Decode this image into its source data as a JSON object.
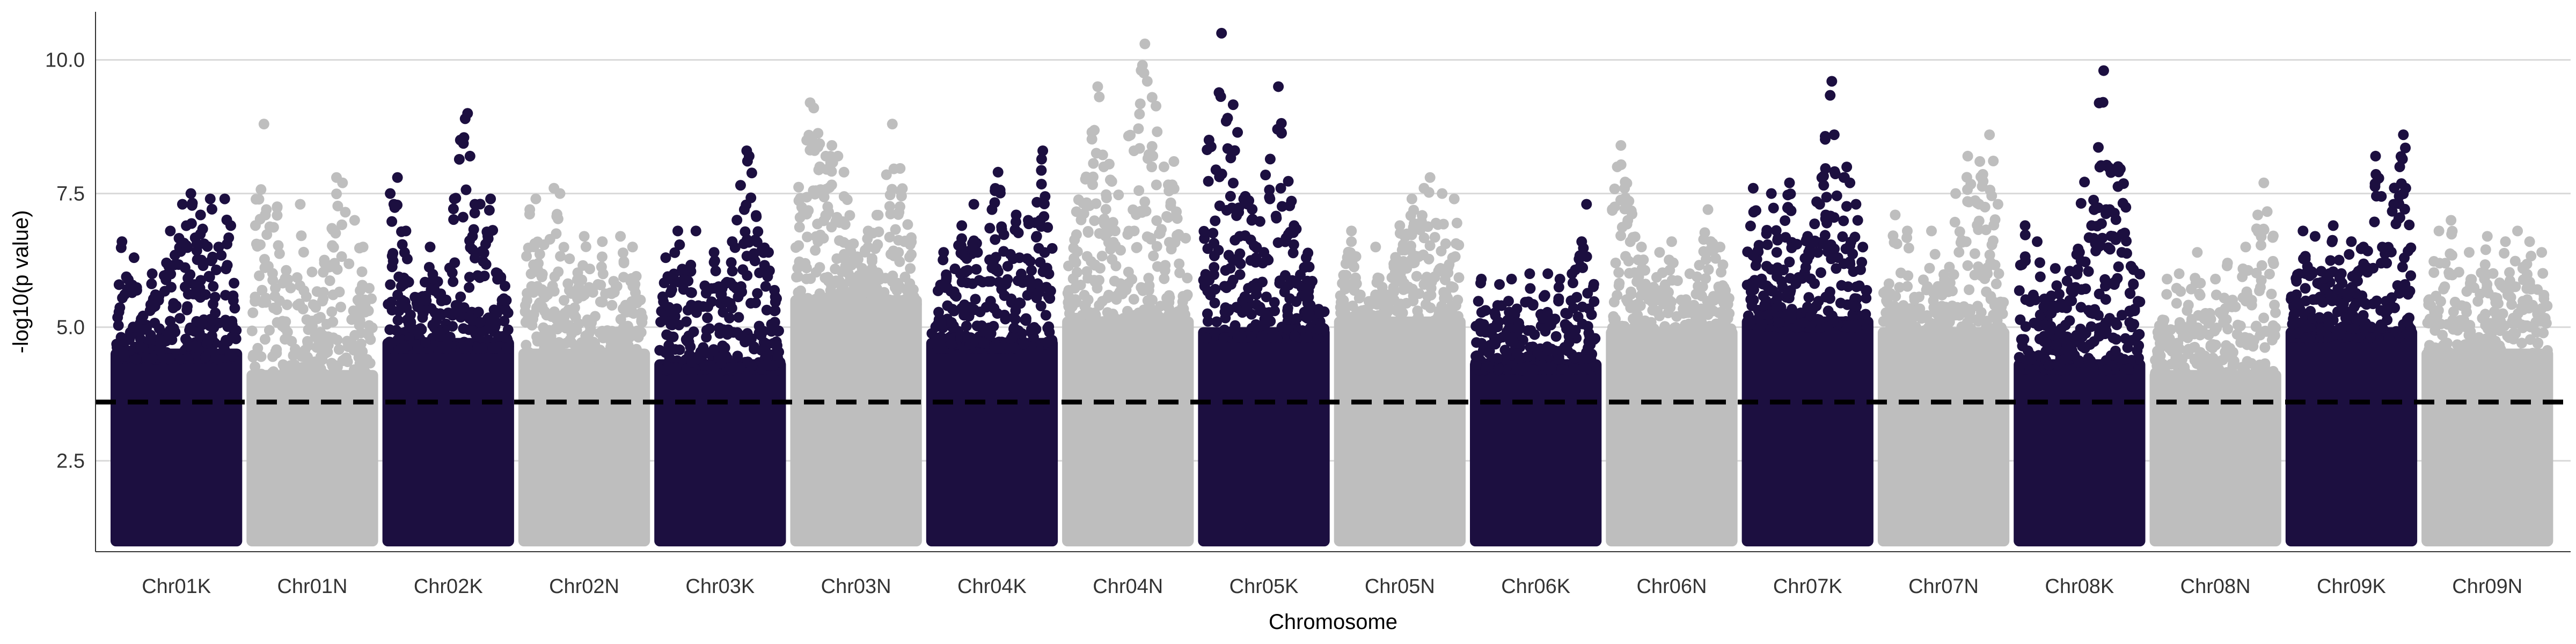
{
  "chart_data": {
    "type": "scatter",
    "title": "",
    "xlabel": "Chromosome",
    "ylabel": "-log10(p value)",
    "ylim": [
      0.8,
      10.9
    ],
    "yticks": [
      2.5,
      5.0,
      7.5,
      10.0
    ],
    "ytick_labels": [
      "2.5",
      "5.0",
      "7.5",
      "10.0"
    ],
    "grid": "horizontal major gridlines at y ticks",
    "legend": "none",
    "threshold_line": {
      "y": 3.6,
      "style": "dashed",
      "color": "#000000"
    },
    "point_colors": [
      "#1c0f40",
      "#bebebe"
    ],
    "points_floor": 1.0,
    "chromosomes": [
      {
        "name": "Chr01K",
        "color": "#1c0f40",
        "dense_top": 4.6,
        "peaks": [
          [
            0.05,
            6.6
          ],
          [
            0.15,
            6.3
          ],
          [
            0.3,
            6.0
          ],
          [
            0.45,
            6.8
          ],
          [
            0.55,
            7.3
          ],
          [
            0.62,
            7.5
          ],
          [
            0.7,
            7.1
          ],
          [
            0.78,
            7.4
          ],
          [
            0.85,
            6.5
          ],
          [
            0.9,
            7.4
          ],
          [
            0.95,
            6.9
          ]
        ]
      },
      {
        "name": "Chr01N",
        "color": "#bebebe",
        "dense_top": 4.2,
        "peaks": [
          [
            0.1,
            8.8
          ],
          [
            0.12,
            7.2
          ],
          [
            0.4,
            7.3
          ],
          [
            0.6,
            6.2
          ],
          [
            0.7,
            7.8
          ],
          [
            0.75,
            7.7
          ],
          [
            0.85,
            7.0
          ],
          [
            0.92,
            6.5
          ]
        ]
      },
      {
        "name": "Chr02K",
        "color": "#1c0f40",
        "dense_top": 4.8,
        "peaks": [
          [
            0.02,
            7.5
          ],
          [
            0.05,
            7.3
          ],
          [
            0.08,
            7.8
          ],
          [
            0.15,
            6.8
          ],
          [
            0.35,
            6.5
          ],
          [
            0.55,
            7.4
          ],
          [
            0.6,
            8.5
          ],
          [
            0.64,
            8.9
          ],
          [
            0.66,
            9.0
          ],
          [
            0.68,
            8.2
          ],
          [
            0.72,
            7.3
          ],
          [
            0.85,
            7.4
          ]
        ]
      },
      {
        "name": "Chr02N",
        "color": "#bebebe",
        "dense_top": 4.6,
        "peaks": [
          [
            0.05,
            7.2
          ],
          [
            0.1,
            7.4
          ],
          [
            0.25,
            7.6
          ],
          [
            0.3,
            7.5
          ],
          [
            0.5,
            6.7
          ],
          [
            0.65,
            6.6
          ],
          [
            0.8,
            6.7
          ],
          [
            0.9,
            6.5
          ]
        ]
      },
      {
        "name": "Chr03K",
        "color": "#1c0f40",
        "dense_top": 4.4,
        "peaks": [
          [
            0.05,
            6.3
          ],
          [
            0.15,
            6.8
          ],
          [
            0.3,
            6.8
          ],
          [
            0.45,
            6.4
          ],
          [
            0.6,
            6.6
          ],
          [
            0.7,
            7.2
          ],
          [
            0.72,
            8.3
          ],
          [
            0.74,
            8.2
          ],
          [
            0.9,
            6.4
          ]
        ]
      },
      {
        "name": "Chr03N",
        "color": "#bebebe",
        "dense_top": 5.6,
        "peaks": [
          [
            0.12,
            9.2
          ],
          [
            0.15,
            9.1
          ],
          [
            0.2,
            8.0
          ],
          [
            0.25,
            8.2
          ],
          [
            0.3,
            8.4
          ],
          [
            0.35,
            8.2
          ],
          [
            0.4,
            7.9
          ],
          [
            0.6,
            6.8
          ],
          [
            0.8,
            8.8
          ],
          [
            0.9,
            6.6
          ]
        ]
      },
      {
        "name": "Chr04K",
        "color": "#1c0f40",
        "dense_top": 4.8,
        "peaks": [
          [
            0.1,
            6.4
          ],
          [
            0.25,
            6.9
          ],
          [
            0.35,
            7.3
          ],
          [
            0.5,
            7.2
          ],
          [
            0.55,
            7.9
          ],
          [
            0.7,
            7.1
          ],
          [
            0.8,
            7.0
          ],
          [
            0.9,
            7.0
          ],
          [
            0.92,
            8.3
          ]
        ]
      },
      {
        "name": "Chr04N",
        "color": "#bebebe",
        "dense_top": 5.2,
        "peaks": [
          [
            0.25,
            9.5
          ],
          [
            0.3,
            8.0
          ],
          [
            0.55,
            8.3
          ],
          [
            0.62,
            9.9
          ],
          [
            0.64,
            10.3
          ],
          [
            0.66,
            9.6
          ],
          [
            0.7,
            9.3
          ],
          [
            0.88,
            8.1
          ]
        ]
      },
      {
        "name": "Chr05K",
        "color": "#1c0f40",
        "dense_top": 5.0,
        "peaks": [
          [
            0.15,
            10.5
          ],
          [
            0.3,
            6.7
          ],
          [
            0.4,
            7.0
          ],
          [
            0.5,
            6.4
          ],
          [
            0.55,
            7.4
          ],
          [
            0.62,
            9.5
          ],
          [
            0.64,
            7.6
          ],
          [
            0.75,
            6.9
          ],
          [
            0.85,
            6.3
          ]
        ]
      },
      {
        "name": "Chr05N",
        "color": "#bebebe",
        "dense_top": 5.2,
        "peaks": [
          [
            0.1,
            6.8
          ],
          [
            0.3,
            6.5
          ],
          [
            0.5,
            6.9
          ],
          [
            0.6,
            7.4
          ],
          [
            0.7,
            7.6
          ],
          [
            0.75,
            7.8
          ],
          [
            0.85,
            7.5
          ],
          [
            0.95,
            7.4
          ]
        ]
      },
      {
        "name": "Chr06K",
        "color": "#1c0f40",
        "dense_top": 4.4,
        "peaks": [
          [
            0.05,
            5.9
          ],
          [
            0.2,
            5.8
          ],
          [
            0.3,
            5.9
          ],
          [
            0.45,
            6.0
          ],
          [
            0.6,
            6.0
          ],
          [
            0.7,
            5.9
          ],
          [
            0.8,
            6.0
          ],
          [
            0.88,
            6.6
          ],
          [
            0.92,
            7.3
          ]
        ]
      },
      {
        "name": "Chr06N",
        "color": "#bebebe",
        "dense_top": 5.0,
        "peaks": [
          [
            0.05,
            8.0
          ],
          [
            0.08,
            8.4
          ],
          [
            0.25,
            6.5
          ],
          [
            0.4,
            6.4
          ],
          [
            0.5,
            6.6
          ],
          [
            0.65,
            6.0
          ],
          [
            0.8,
            7.2
          ],
          [
            0.9,
            6.5
          ]
        ]
      },
      {
        "name": "Chr07K",
        "color": "#1c0f40",
        "dense_top": 5.2,
        "peaks": [
          [
            0.05,
            7.6
          ],
          [
            0.2,
            7.5
          ],
          [
            0.35,
            7.7
          ],
          [
            0.5,
            6.7
          ],
          [
            0.6,
            7.3
          ],
          [
            0.65,
            7.1
          ],
          [
            0.7,
            9.6
          ],
          [
            0.72,
            8.6
          ],
          [
            0.8,
            7.8
          ],
          [
            0.85,
            7.7
          ],
          [
            0.9,
            7.3
          ]
        ]
      },
      {
        "name": "Chr07N",
        "color": "#bebebe",
        "dense_top": 5.0,
        "peaks": [
          [
            0.1,
            7.1
          ],
          [
            0.2,
            6.8
          ],
          [
            0.4,
            6.8
          ],
          [
            0.6,
            7.5
          ],
          [
            0.7,
            8.2
          ],
          [
            0.8,
            8.1
          ],
          [
            0.88,
            8.6
          ],
          [
            0.95,
            7.3
          ]
        ]
      },
      {
        "name": "Chr08K",
        "color": "#1c0f40",
        "dense_top": 4.4,
        "peaks": [
          [
            0.05,
            6.9
          ],
          [
            0.15,
            6.6
          ],
          [
            0.3,
            6.1
          ],
          [
            0.5,
            6.4
          ],
          [
            0.6,
            6.9
          ],
          [
            0.7,
            9.8
          ],
          [
            0.72,
            7.2
          ],
          [
            0.75,
            7.2
          ],
          [
            0.85,
            6.4
          ]
        ]
      },
      {
        "name": "Chr08N",
        "color": "#bebebe",
        "dense_top": 4.2,
        "peaks": [
          [
            0.1,
            5.9
          ],
          [
            0.2,
            6.0
          ],
          [
            0.35,
            6.4
          ],
          [
            0.5,
            5.9
          ],
          [
            0.6,
            6.2
          ],
          [
            0.75,
            6.5
          ],
          [
            0.85,
            7.1
          ],
          [
            0.9,
            7.7
          ]
        ]
      },
      {
        "name": "Chr09K",
        "color": "#1c0f40",
        "dense_top": 5.0,
        "peaks": [
          [
            0.1,
            6.8
          ],
          [
            0.2,
            6.7
          ],
          [
            0.35,
            6.9
          ],
          [
            0.5,
            6.6
          ],
          [
            0.6,
            6.5
          ],
          [
            0.7,
            8.2
          ],
          [
            0.85,
            7.3
          ],
          [
            0.9,
            8.0
          ],
          [
            0.93,
            8.6
          ],
          [
            0.95,
            7.6
          ]
        ]
      },
      {
        "name": "Chr09N",
        "color": "#bebebe",
        "dense_top": 4.6,
        "peaks": [
          [
            0.1,
            6.8
          ],
          [
            0.2,
            7.0
          ],
          [
            0.35,
            6.4
          ],
          [
            0.5,
            6.7
          ],
          [
            0.65,
            6.6
          ],
          [
            0.75,
            6.8
          ],
          [
            0.85,
            6.6
          ],
          [
            0.95,
            6.4
          ]
        ]
      }
    ]
  }
}
